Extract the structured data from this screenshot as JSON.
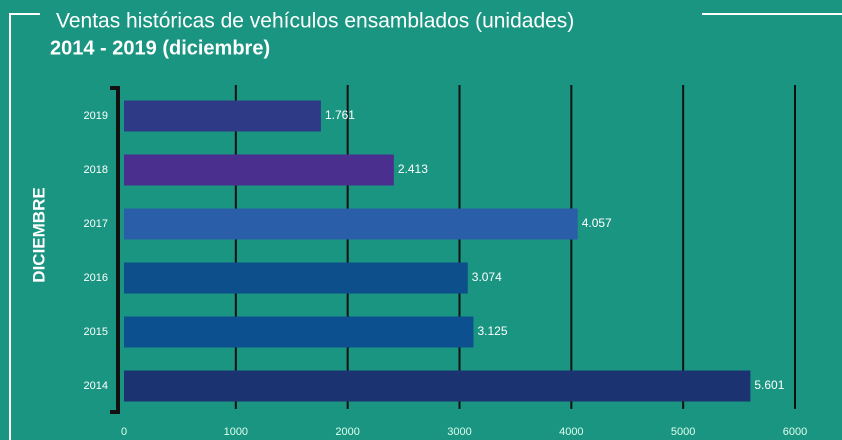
{
  "chart_data": {
    "type": "bar",
    "orientation": "horizontal",
    "title": "Ventas históricas de vehículos ensamblados (unidades)",
    "subtitle": "2014 - 2019 (diciembre)",
    "y_label": "DICIEMBRE",
    "categories": [
      "2019",
      "2018",
      "2017",
      "2016",
      "2015",
      "2014"
    ],
    "values": [
      1761,
      2413,
      4057,
      3074,
      3125,
      5601
    ],
    "value_labels": [
      "1.761",
      "2.413",
      "4.057",
      "3.074",
      "3.125",
      "5.601"
    ],
    "colors": [
      "#2f3a87",
      "#4a2f8f",
      "#2b5ea8",
      "#0c4f8a",
      "#0d5090",
      "#1b3471"
    ],
    "xlim": [
      0,
      6000
    ],
    "xticks": [
      0,
      1000,
      2000,
      3000,
      4000,
      5000,
      6000
    ],
    "grid": true
  }
}
